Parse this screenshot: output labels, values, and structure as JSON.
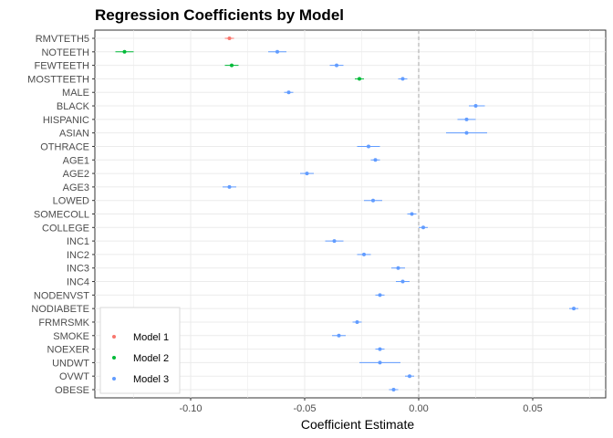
{
  "chart_data": {
    "type": "scatter",
    "subtype": "coefficient-forest-plot",
    "title": "Regression Coefficients by Model",
    "xlabel": "Coefficient Estimate",
    "ylabel": "",
    "xlim": [
      -0.142,
      0.082
    ],
    "x_ticks": [
      -0.1,
      -0.05,
      0.0,
      0.05
    ],
    "x_tick_labels": [
      "-0.10",
      "-0.05",
      "0.00",
      "0.05"
    ],
    "reference_line": 0,
    "reference_line_style": "dashed",
    "grid": true,
    "legend_position": "bottom-left",
    "categories": [
      "RMVTETH5",
      "NOTEETH",
      "FEWTEETH",
      "MOSTTEETH",
      "MALE",
      "BLACK",
      "HISPANIC",
      "ASIAN",
      "OTHRACE",
      "AGE1",
      "AGE2",
      "AGE3",
      "LOWED",
      "SOMECOLL",
      "COLLEGE",
      "INC1",
      "INC2",
      "INC3",
      "INC4",
      "NODENVST",
      "NODIABETE",
      "FRMRSMK",
      "SMOKE",
      "NOEXER",
      "UNDWT",
      "OVWT",
      "OBESE"
    ],
    "series": [
      {
        "name": "Model 1",
        "color": "#F8766D",
        "points": [
          {
            "category": "RMVTETH5",
            "estimate": -0.083,
            "low": -0.085,
            "high": -0.081
          }
        ]
      },
      {
        "name": "Model 2",
        "color": "#00BA38",
        "points": [
          {
            "category": "NOTEETH",
            "estimate": -0.129,
            "low": -0.133,
            "high": -0.125
          },
          {
            "category": "FEWTEETH",
            "estimate": -0.082,
            "low": -0.085,
            "high": -0.079
          },
          {
            "category": "MOSTTEETH",
            "estimate": -0.026,
            "low": -0.028,
            "high": -0.024
          }
        ]
      },
      {
        "name": "Model 3",
        "color": "#619CFF",
        "points": [
          {
            "category": "NOTEETH",
            "estimate": -0.062,
            "low": -0.066,
            "high": -0.058
          },
          {
            "category": "FEWTEETH",
            "estimate": -0.036,
            "low": -0.039,
            "high": -0.033
          },
          {
            "category": "MOSTTEETH",
            "estimate": -0.007,
            "low": -0.009,
            "high": -0.005
          },
          {
            "category": "MALE",
            "estimate": -0.057,
            "low": -0.059,
            "high": -0.055
          },
          {
            "category": "BLACK",
            "estimate": 0.025,
            "low": 0.022,
            "high": 0.029
          },
          {
            "category": "HISPANIC",
            "estimate": 0.021,
            "low": 0.017,
            "high": 0.025
          },
          {
            "category": "ASIAN",
            "estimate": 0.021,
            "low": 0.012,
            "high": 0.03
          },
          {
            "category": "OTHRACE",
            "estimate": -0.022,
            "low": -0.027,
            "high": -0.017
          },
          {
            "category": "AGE1",
            "estimate": -0.019,
            "low": -0.021,
            "high": -0.017
          },
          {
            "category": "AGE2",
            "estimate": -0.049,
            "low": -0.052,
            "high": -0.046
          },
          {
            "category": "AGE3",
            "estimate": -0.083,
            "low": -0.086,
            "high": -0.08
          },
          {
            "category": "LOWED",
            "estimate": -0.02,
            "low": -0.024,
            "high": -0.016
          },
          {
            "category": "SOMECOLL",
            "estimate": -0.003,
            "low": -0.005,
            "high": -0.001
          },
          {
            "category": "COLLEGE",
            "estimate": 0.002,
            "low": 0.0,
            "high": 0.004
          },
          {
            "category": "INC1",
            "estimate": -0.037,
            "low": -0.041,
            "high": -0.033
          },
          {
            "category": "INC2",
            "estimate": -0.024,
            "low": -0.027,
            "high": -0.021
          },
          {
            "category": "INC3",
            "estimate": -0.009,
            "low": -0.012,
            "high": -0.006
          },
          {
            "category": "INC4",
            "estimate": -0.007,
            "low": -0.01,
            "high": -0.004
          },
          {
            "category": "NODENVST",
            "estimate": -0.017,
            "low": -0.019,
            "high": -0.015
          },
          {
            "category": "NODIABETE",
            "estimate": 0.068,
            "low": 0.066,
            "high": 0.07
          },
          {
            "category": "FRMRSMK",
            "estimate": -0.027,
            "low": -0.029,
            "high": -0.025
          },
          {
            "category": "SMOKE",
            "estimate": -0.035,
            "low": -0.038,
            "high": -0.032
          },
          {
            "category": "NOEXER",
            "estimate": -0.017,
            "low": -0.019,
            "high": -0.015
          },
          {
            "category": "UNDWT",
            "estimate": -0.017,
            "low": -0.026,
            "high": -0.008
          },
          {
            "category": "OVWT",
            "estimate": -0.004,
            "low": -0.006,
            "high": -0.002
          },
          {
            "category": "OBESE",
            "estimate": -0.011,
            "low": -0.013,
            "high": -0.009
          }
        ]
      }
    ]
  },
  "colors": {
    "panel_background": "#ffffff",
    "grid": "#ebebeb",
    "panel_border": "#333333",
    "reference_line": "#a6a6a6"
  }
}
